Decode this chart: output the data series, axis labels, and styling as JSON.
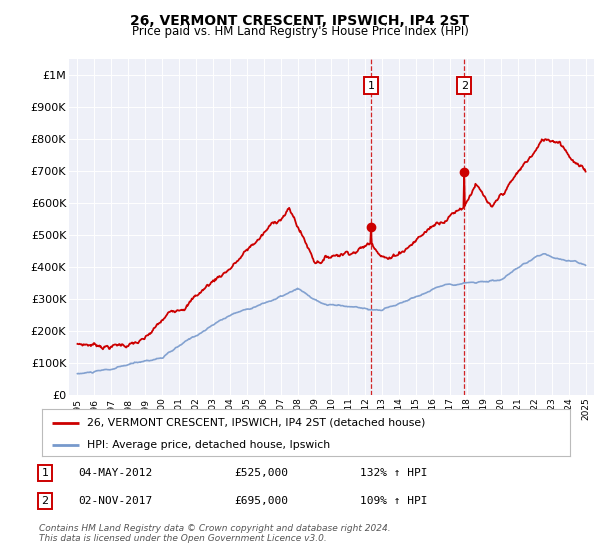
{
  "title": "26, VERMONT CRESCENT, IPSWICH, IP4 2ST",
  "subtitle": "Price paid vs. HM Land Registry's House Price Index (HPI)",
  "legend_line1": "26, VERMONT CRESCENT, IPSWICH, IP4 2ST (detached house)",
  "legend_line2": "HPI: Average price, detached house, Ipswich",
  "annotation_text": "Contains HM Land Registry data © Crown copyright and database right 2024.\nThis data is licensed under the Open Government Licence v3.0.",
  "marker1_label": "1",
  "marker1_date": "04-MAY-2012",
  "marker1_price": "£525,000",
  "marker1_hpi": "132% ↑ HPI",
  "marker1_x": 2012.35,
  "marker1_y": 525000,
  "marker2_label": "2",
  "marker2_date": "02-NOV-2017",
  "marker2_price": "£695,000",
  "marker2_hpi": "109% ↑ HPI",
  "marker2_x": 2017.84,
  "marker2_y": 695000,
  "red_color": "#cc0000",
  "blue_color": "#7799cc",
  "grid_color": "#ddddee",
  "bg_color": "#eef0f8",
  "ylim": [
    0,
    1050000
  ],
  "xlim": [
    1994.5,
    2025.5
  ],
  "yticks": [
    0,
    100000,
    200000,
    300000,
    400000,
    500000,
    600000,
    700000,
    800000,
    900000,
    1000000
  ],
  "ytick_labels": [
    "£0",
    "£100K",
    "£200K",
    "£300K",
    "£400K",
    "£500K",
    "£600K",
    "£700K",
    "£800K",
    "£900K",
    "£1M"
  ],
  "xticks": [
    1995,
    1996,
    1997,
    1998,
    1999,
    2000,
    2001,
    2002,
    2003,
    2004,
    2005,
    2006,
    2007,
    2008,
    2009,
    2010,
    2011,
    2012,
    2013,
    2014,
    2015,
    2016,
    2017,
    2018,
    2019,
    2020,
    2021,
    2022,
    2023,
    2024,
    2025
  ]
}
